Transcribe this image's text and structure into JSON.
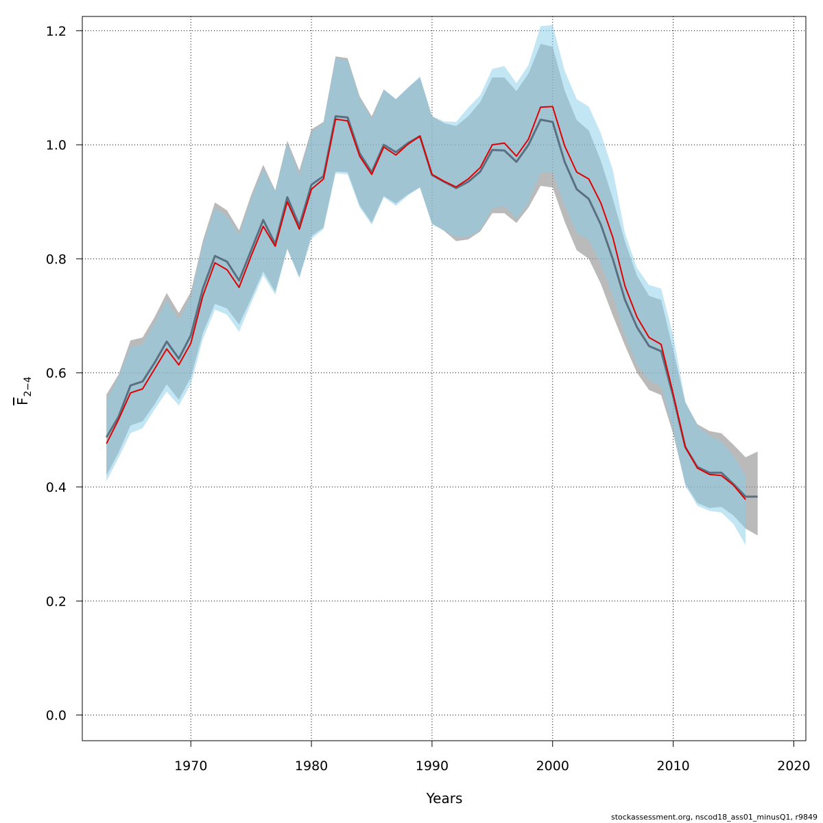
{
  "chart_data": {
    "type": "area",
    "xlabel": "Years",
    "ylabel_main": "F",
    "ylabel_sub": "2−4",
    "xlim": [
      1961,
      2021
    ],
    "ylim": [
      -0.045,
      1.225
    ],
    "x_ticks": [
      1970,
      1980,
      1990,
      2000,
      2010,
      2020
    ],
    "y_ticks": [
      0.0,
      0.2,
      0.4,
      0.6,
      0.8,
      1.0,
      1.2
    ],
    "y_tick_labels": [
      "0.0",
      "0.2",
      "0.4",
      "0.6",
      "0.8",
      "1.0",
      "1.2"
    ],
    "grid": true,
    "colors": {
      "band_a": "#8c8c8c",
      "band_b": "#87ceeb",
      "line_a": "#5a7080",
      "line_b": "#e00000"
    },
    "series": [
      {
        "x": [
          1963,
          1964,
          1965,
          1966,
          1967,
          1968,
          1969,
          1970,
          1971,
          1972,
          1973,
          1974,
          1975,
          1976,
          1977,
          1978,
          1979,
          1980,
          1981,
          1982,
          1983,
          1984,
          1985,
          1986,
          1987,
          1988,
          1989,
          1990,
          1991,
          1992,
          1993,
          1994,
          1995,
          1996,
          1997,
          1998,
          1999,
          2000,
          2001,
          2002,
          2003,
          2004,
          2005,
          2006,
          2007,
          2008,
          2009,
          2010,
          2011,
          2012,
          2013,
          2014,
          2015,
          2016,
          2017
        ],
        "values": [
          0.487,
          0.523,
          0.578,
          0.585,
          0.618,
          0.655,
          0.625,
          0.666,
          0.748,
          0.805,
          0.795,
          0.762,
          0.815,
          0.868,
          0.826,
          0.908,
          0.858,
          0.93,
          0.945,
          1.05,
          1.048,
          0.985,
          0.952,
          1.0,
          0.987,
          1.003,
          1.015,
          0.947,
          0.935,
          0.924,
          0.935,
          0.953,
          0.991,
          0.99,
          0.97,
          1.0,
          1.044,
          1.04,
          0.97,
          0.922,
          0.905,
          0.86,
          0.799,
          0.728,
          0.68,
          0.647,
          0.638,
          0.559,
          0.47,
          0.435,
          0.425,
          0.425,
          0.405,
          0.383,
          0.383
        ],
        "lower": [
          0.42,
          0.46,
          0.508,
          0.515,
          0.545,
          0.58,
          0.553,
          0.592,
          0.67,
          0.721,
          0.713,
          0.685,
          0.73,
          0.778,
          0.742,
          0.818,
          0.768,
          0.84,
          0.855,
          0.953,
          0.952,
          0.894,
          0.863,
          0.91,
          0.897,
          0.913,
          0.925,
          0.862,
          0.849,
          0.831,
          0.834,
          0.848,
          0.88,
          0.88,
          0.863,
          0.89,
          0.928,
          0.925,
          0.865,
          0.815,
          0.8,
          0.756,
          0.7,
          0.648,
          0.6,
          0.57,
          0.561,
          0.493,
          0.405,
          0.372,
          0.363,
          0.365,
          0.35,
          0.327,
          0.315
        ],
        "upper": [
          0.562,
          0.597,
          0.657,
          0.662,
          0.698,
          0.74,
          0.705,
          0.742,
          0.832,
          0.899,
          0.885,
          0.85,
          0.912,
          0.965,
          0.92,
          1.007,
          0.955,
          1.027,
          1.04,
          1.155,
          1.152,
          1.085,
          1.05,
          1.097,
          1.08,
          1.1,
          1.118,
          1.05,
          1.038,
          1.033,
          1.05,
          1.075,
          1.118,
          1.118,
          1.094,
          1.125,
          1.177,
          1.172,
          1.095,
          1.043,
          1.025,
          0.972,
          0.905,
          0.83,
          0.77,
          0.735,
          0.728,
          0.64,
          0.548,
          0.51,
          0.498,
          0.494,
          0.474,
          0.452,
          0.462
        ]
      },
      {
        "x": [
          1963,
          1964,
          1965,
          1966,
          1967,
          1968,
          1969,
          1970,
          1971,
          1972,
          1973,
          1974,
          1975,
          1976,
          1977,
          1978,
          1979,
          1980,
          1981,
          1982,
          1983,
          1984,
          1985,
          1986,
          1987,
          1988,
          1989,
          1990,
          1991,
          1992,
          1993,
          1994,
          1995,
          1996,
          1997,
          1998,
          1999,
          2000,
          2001,
          2002,
          2003,
          2004,
          2005,
          2006,
          2007,
          2008,
          2009,
          2010,
          2011,
          2012,
          2013,
          2014,
          2015,
          2016
        ],
        "values": [
          0.476,
          0.518,
          0.565,
          0.572,
          0.607,
          0.642,
          0.614,
          0.652,
          0.735,
          0.793,
          0.781,
          0.75,
          0.805,
          0.857,
          0.822,
          0.9,
          0.852,
          0.922,
          0.94,
          1.045,
          1.042,
          0.98,
          0.948,
          0.996,
          0.982,
          1.001,
          1.015,
          0.948,
          0.936,
          0.926,
          0.94,
          0.96,
          1.0,
          1.003,
          0.98,
          1.01,
          1.066,
          1.067,
          0.998,
          0.952,
          0.94,
          0.898,
          0.837,
          0.752,
          0.698,
          0.662,
          0.65,
          0.563,
          0.47,
          0.433,
          0.422,
          0.42,
          0.403,
          0.378
        ],
        "lower": [
          0.41,
          0.451,
          0.494,
          0.503,
          0.536,
          0.567,
          0.543,
          0.58,
          0.659,
          0.711,
          0.702,
          0.672,
          0.722,
          0.771,
          0.737,
          0.817,
          0.766,
          0.835,
          0.852,
          0.95,
          0.948,
          0.89,
          0.86,
          0.908,
          0.893,
          0.911,
          0.925,
          0.86,
          0.85,
          0.838,
          0.838,
          0.85,
          0.888,
          0.893,
          0.87,
          0.898,
          0.951,
          0.951,
          0.893,
          0.845,
          0.833,
          0.79,
          0.735,
          0.665,
          0.614,
          0.587,
          0.576,
          0.5,
          0.402,
          0.367,
          0.358,
          0.355,
          0.335,
          0.298
        ],
        "upper": [
          0.552,
          0.593,
          0.645,
          0.65,
          0.688,
          0.728,
          0.693,
          0.733,
          0.825,
          0.889,
          0.875,
          0.842,
          0.905,
          0.958,
          0.918,
          1.003,
          0.947,
          1.022,
          1.038,
          1.152,
          1.148,
          1.082,
          1.045,
          1.097,
          1.08,
          1.1,
          1.12,
          1.05,
          1.041,
          1.04,
          1.065,
          1.087,
          1.133,
          1.138,
          1.108,
          1.14,
          1.208,
          1.21,
          1.13,
          1.08,
          1.067,
          1.02,
          0.955,
          0.845,
          0.784,
          0.754,
          0.748,
          0.665,
          0.55,
          0.507,
          0.49,
          0.48,
          0.455,
          0.42
        ]
      }
    ]
  },
  "footer": "stockassessment.org, nscod18_ass01_minusQ1, r9849"
}
